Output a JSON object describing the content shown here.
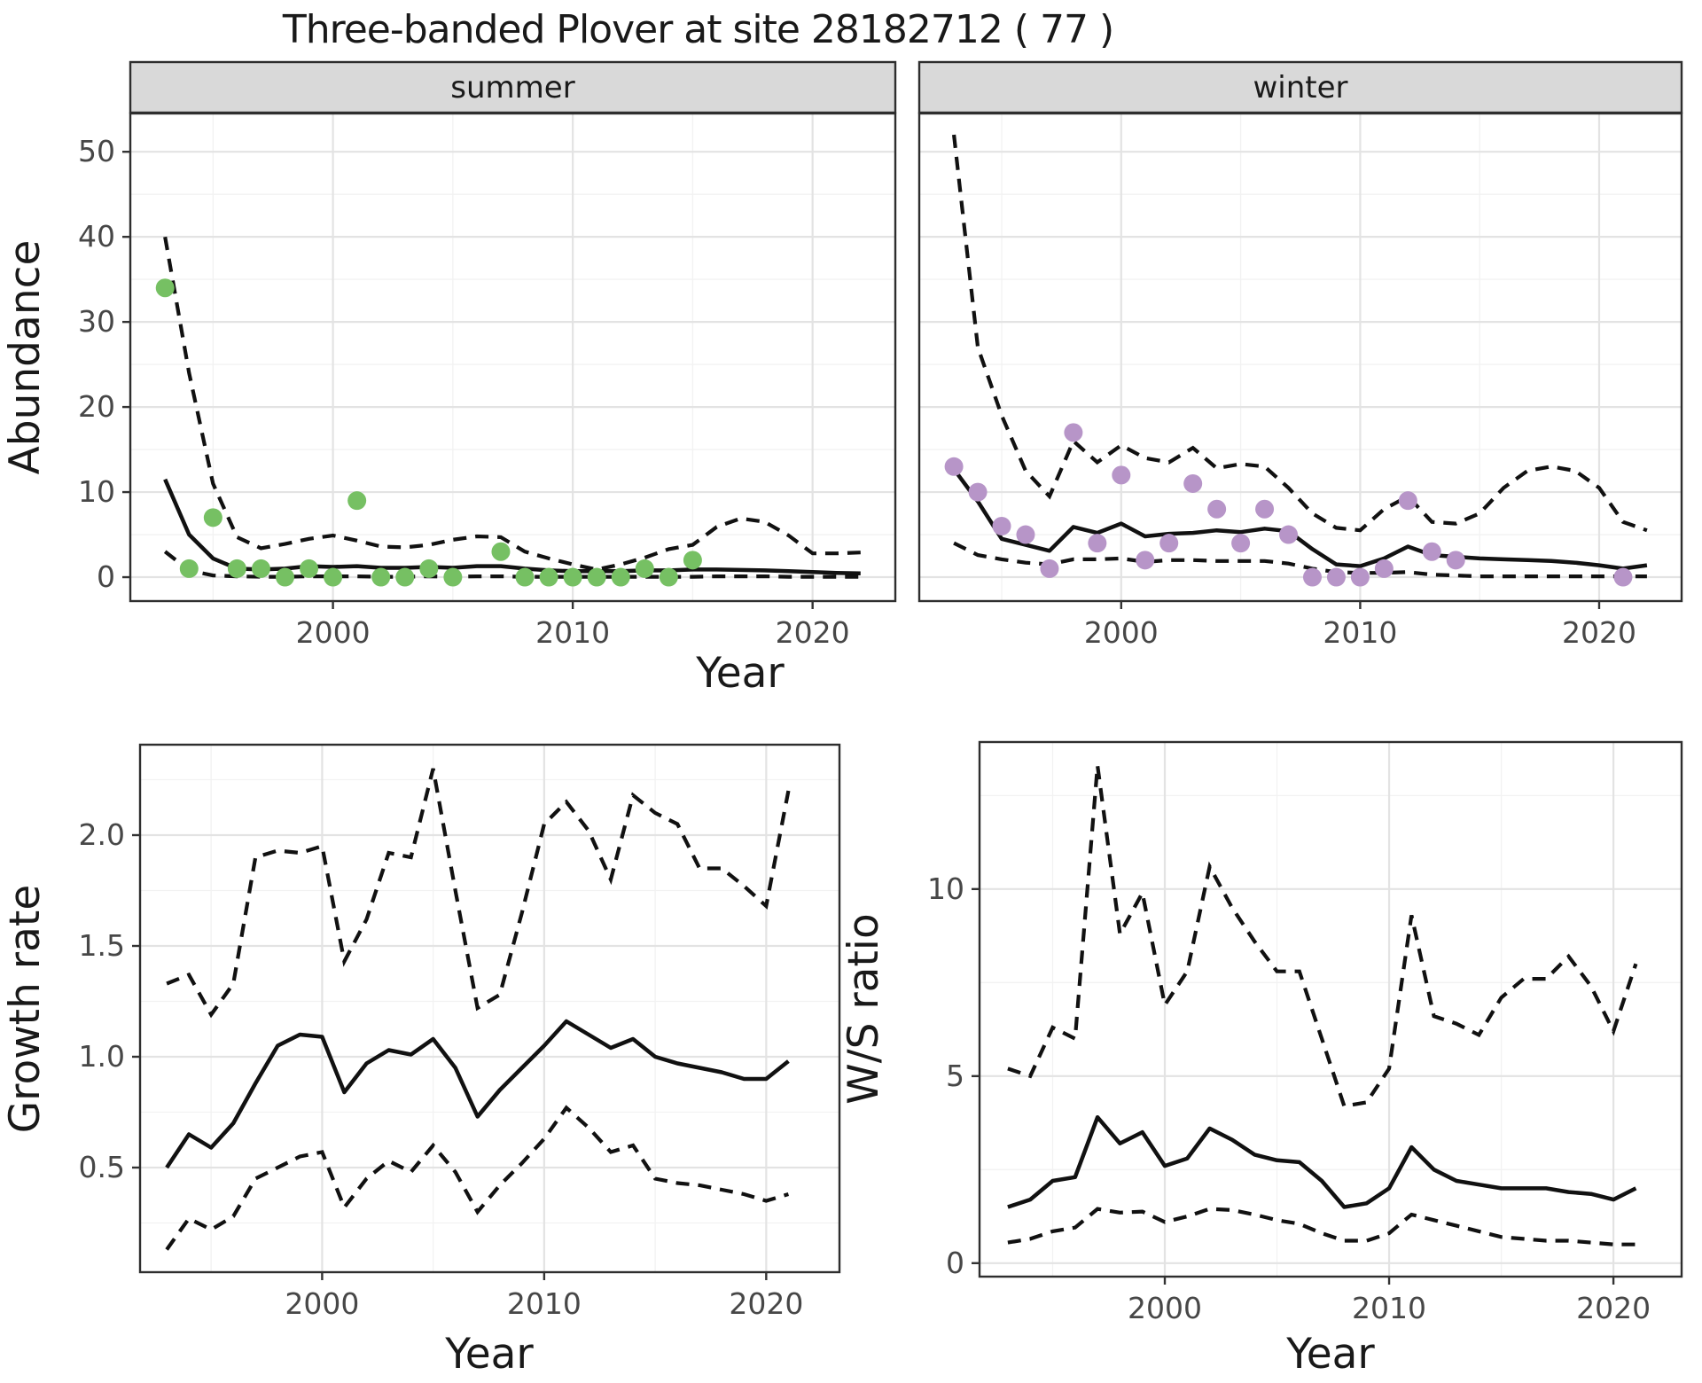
{
  "title": "Three-banded Plover at site 28182712 ( 77 )",
  "colors": {
    "summer_point": "#76c063",
    "winter_point": "#b795c8",
    "line": "#111111",
    "strip_bg": "#d9d9d9",
    "panel_bg": "#ffffff",
    "grid_major": "#e3e3e3",
    "grid_minor": "#f2f2f2",
    "panel_border": "#2e2e2e",
    "tick_label": "#474747",
    "axis_title": "#191919"
  },
  "chart_data": [
    {
      "type": "scatter",
      "facet": "summer",
      "ylabel": "Abundance",
      "xlabel": "Year",
      "ytick_labels": [
        "0",
        "10",
        "20",
        "30",
        "40",
        "50"
      ],
      "yticks": [
        0,
        10,
        20,
        30,
        40,
        50
      ],
      "xtick_labels": [
        "2000",
        "2010",
        "2020"
      ],
      "xticks": [
        2000,
        2010,
        2020
      ],
      "ylim": [
        -2.81,
        54.5
      ],
      "xlim": [
        1991.55,
        2023.45
      ],
      "grid": true,
      "legend": "none",
      "points": {
        "years": [
          1993,
          1994,
          1995,
          1996,
          1997,
          1998,
          1999,
          2000,
          2001,
          2002,
          2003,
          2004,
          2005,
          2007,
          2008,
          2009,
          2010,
          2011,
          2012,
          2013,
          2014,
          2015
        ],
        "values": [
          34,
          1,
          7,
          1,
          1,
          0,
          1,
          0,
          9,
          0,
          0,
          1,
          0,
          3,
          0,
          0,
          0,
          0,
          0,
          1,
          0,
          2
        ]
      },
      "fit_years": [
        1993,
        1994,
        1995,
        1996,
        1997,
        1998,
        1999,
        2000,
        2001,
        2002,
        2003,
        2004,
        2005,
        2006,
        2007,
        2008,
        2009,
        2010,
        2011,
        2012,
        2013,
        2014,
        2015,
        2016,
        2017,
        2018,
        2019,
        2020,
        2021,
        2022
      ],
      "median": [
        11.5,
        5.0,
        2.2,
        1.0,
        0.9,
        1.0,
        1.3,
        1.2,
        1.3,
        1.1,
        1.1,
        1.2,
        1.1,
        1.3,
        1.3,
        1.0,
        0.8,
        0.7,
        0.7,
        0.7,
        0.8,
        0.8,
        0.9,
        0.9,
        0.85,
        0.8,
        0.7,
        0.6,
        0.5,
        0.45
      ],
      "upper": [
        40,
        24,
        11,
        4.7,
        3.4,
        3.9,
        4.5,
        4.9,
        4.3,
        3.6,
        3.5,
        3.8,
        4.4,
        4.8,
        4.7,
        3.0,
        2.2,
        1.5,
        0.9,
        1.5,
        2.3,
        3.3,
        3.8,
        5.9,
        6.9,
        6.5,
        4.9,
        2.8,
        2.8,
        2.9
      ],
      "lower": [
        3.0,
        0.8,
        0.2,
        0.1,
        0.05,
        0.05,
        0.1,
        0.1,
        0.1,
        0.05,
        0.05,
        0.1,
        0.05,
        0.1,
        0.1,
        0.05,
        0.05,
        0.05,
        0.05,
        0.05,
        0.05,
        0.05,
        0.05,
        0.1,
        0.1,
        0.1,
        0.05,
        0.05,
        0.05,
        0.05
      ]
    },
    {
      "type": "scatter",
      "facet": "winter",
      "ylabel": "Abundance",
      "xlabel": "Year",
      "ytick_labels": [
        "0",
        "10",
        "20",
        "30",
        "40",
        "50"
      ],
      "yticks": [
        0,
        10,
        20,
        30,
        40,
        50
      ],
      "xtick_labels": [
        "2000",
        "2010",
        "2020"
      ],
      "xticks": [
        2000,
        2010,
        2020
      ],
      "ylim": [
        -2.81,
        54.5
      ],
      "xlim": [
        1991.55,
        2023.45
      ],
      "grid": true,
      "legend": "none",
      "points": {
        "years": [
          1993,
          1994,
          1995,
          1996,
          1997,
          1998,
          1999,
          2000,
          2001,
          2002,
          2003,
          2004,
          2005,
          2006,
          2007,
          2008,
          2009,
          2010,
          2011,
          2012,
          2013,
          2014,
          2021
        ],
        "values": [
          13,
          10,
          6,
          5,
          1,
          17,
          4,
          12,
          2,
          4,
          11,
          8,
          4,
          8,
          5,
          0,
          0,
          0,
          1,
          9,
          3,
          2,
          0
        ]
      },
      "fit_years": [
        1993,
        1994,
        1995,
        1996,
        1997,
        1998,
        1999,
        2000,
        2001,
        2002,
        2003,
        2004,
        2005,
        2006,
        2007,
        2008,
        2009,
        2010,
        2011,
        2012,
        2013,
        2014,
        2015,
        2016,
        2017,
        2018,
        2019,
        2020,
        2021,
        2022
      ],
      "median": [
        12.7,
        8.9,
        4.5,
        3.8,
        3.1,
        5.9,
        5.2,
        6.3,
        4.8,
        5.1,
        5.2,
        5.5,
        5.3,
        5.7,
        5.4,
        3.3,
        1.5,
        1.3,
        2.2,
        3.6,
        2.6,
        2.4,
        2.2,
        2.1,
        2.0,
        1.9,
        1.7,
        1.4,
        1.0,
        1.4
      ],
      "upper": [
        52,
        27,
        19,
        12.5,
        9.5,
        16,
        13.5,
        15.5,
        14,
        13.5,
        15.2,
        12.8,
        13.3,
        13,
        10.5,
        7.5,
        5.8,
        5.5,
        8,
        9.5,
        6.5,
        6.3,
        7.5,
        10.5,
        12.5,
        13,
        12.5,
        10.5,
        6.5,
        5.5
      ],
      "lower": [
        4.0,
        2.6,
        2.1,
        1.7,
        1.5,
        2.1,
        2.1,
        2.2,
        1.8,
        2.0,
        2.0,
        1.9,
        1.9,
        1.9,
        1.6,
        1.0,
        0.6,
        0.5,
        0.5,
        0.6,
        0.3,
        0.2,
        0.1,
        0.1,
        0.1,
        0.1,
        0.1,
        0.1,
        0.1,
        0.1
      ]
    },
    {
      "type": "line",
      "name": "growth_rate",
      "ylabel": "Growth rate",
      "xlabel": "Year",
      "ytick_labels": [
        "0.5",
        "1.0",
        "1.5",
        "2.0"
      ],
      "yticks": [
        0.5,
        1.0,
        1.5,
        2.0
      ],
      "xtick_labels": [
        "2000",
        "2010",
        "2020"
      ],
      "xticks": [
        2000,
        2010,
        2020
      ],
      "ylim": [
        0.028,
        2.408
      ],
      "xlim": [
        1991.8,
        2023.3
      ],
      "grid": true,
      "legend": "none",
      "fit_years": [
        1993,
        1994,
        1995,
        1996,
        1997,
        1998,
        1999,
        2000,
        2001,
        2002,
        2003,
        2004,
        2005,
        2006,
        2007,
        2008,
        2009,
        2010,
        2011,
        2012,
        2013,
        2014,
        2015,
        2016,
        2017,
        2018,
        2019,
        2020,
        2021
      ],
      "median": [
        0.5,
        0.65,
        0.59,
        0.7,
        0.88,
        1.05,
        1.1,
        1.09,
        0.84,
        0.97,
        1.03,
        1.01,
        1.08,
        0.95,
        0.73,
        0.85,
        0.95,
        1.05,
        1.16,
        1.1,
        1.04,
        1.08,
        1.0,
        0.97,
        0.95,
        0.93,
        0.9,
        0.9,
        0.98
      ],
      "upper": [
        1.33,
        1.37,
        1.19,
        1.33,
        1.9,
        1.93,
        1.92,
        1.95,
        1.43,
        1.62,
        1.92,
        1.9,
        2.3,
        1.75,
        1.22,
        1.28,
        1.65,
        2.05,
        2.15,
        2.02,
        1.8,
        2.18,
        2.1,
        2.05,
        1.85,
        1.85,
        1.77,
        1.68,
        2.2
      ],
      "lower": [
        0.13,
        0.27,
        0.22,
        0.28,
        0.45,
        0.5,
        0.55,
        0.57,
        0.32,
        0.45,
        0.53,
        0.48,
        0.6,
        0.48,
        0.3,
        0.42,
        0.52,
        0.63,
        0.77,
        0.68,
        0.57,
        0.6,
        0.45,
        0.43,
        0.42,
        0.4,
        0.38,
        0.35,
        0.38
      ]
    },
    {
      "type": "line",
      "name": "ws_ratio",
      "ylabel": "W/S ratio",
      "xlabel": "Year",
      "ytick_labels": [
        "0",
        "5",
        "10"
      ],
      "yticks": [
        0,
        5,
        10
      ],
      "xtick_labels": [
        "2000",
        "2010",
        "2020"
      ],
      "xticks": [
        2000,
        2010,
        2020
      ],
      "ylim": [
        -0.36,
        13.93
      ],
      "xlim": [
        1991.74,
        2023.04
      ],
      "grid": true,
      "legend": "none",
      "fit_years": [
        1993,
        1994,
        1995,
        1996,
        1997,
        1998,
        1999,
        2000,
        2001,
        2002,
        2003,
        2004,
        2005,
        2006,
        2007,
        2008,
        2009,
        2010,
        2011,
        2012,
        2013,
        2014,
        2015,
        2016,
        2017,
        2018,
        2019,
        2020,
        2021
      ],
      "median": [
        1.5,
        1.7,
        2.2,
        2.3,
        3.9,
        3.2,
        3.5,
        2.6,
        2.8,
        3.6,
        3.3,
        2.9,
        2.75,
        2.7,
        2.2,
        1.5,
        1.6,
        2.0,
        3.1,
        2.5,
        2.2,
        2.1,
        2.0,
        2.0,
        2.0,
        1.9,
        1.85,
        1.7,
        2.0
      ],
      "upper": [
        5.2,
        5.0,
        6.3,
        6.0,
        13.3,
        8.8,
        9.9,
        6.9,
        7.8,
        10.6,
        9.5,
        8.6,
        7.8,
        7.8,
        6.0,
        4.2,
        4.3,
        5.2,
        9.3,
        6.6,
        6.4,
        6.1,
        7.1,
        7.6,
        7.6,
        8.2,
        7.4,
        6.2,
        8.0
      ],
      "lower": [
        0.55,
        0.65,
        0.85,
        0.95,
        1.45,
        1.35,
        1.38,
        1.1,
        1.25,
        1.45,
        1.42,
        1.3,
        1.15,
        1.05,
        0.8,
        0.6,
        0.6,
        0.8,
        1.3,
        1.15,
        1.0,
        0.85,
        0.7,
        0.65,
        0.6,
        0.6,
        0.55,
        0.5,
        0.5
      ]
    }
  ]
}
